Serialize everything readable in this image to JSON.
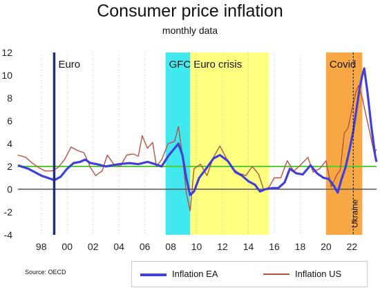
{
  "header": {
    "title": "Consumer price inflation",
    "subtitle": "monthly data"
  },
  "source": "Source: OECD",
  "colors": {
    "ea_line": "#4040d8",
    "us_line": "#b85040",
    "target_line": "#50d030",
    "zero_line": "#555555",
    "euro_marker": "#1f2f7a",
    "gfc_band": "#40e8f0",
    "euro_crisis_band": "#ffff80",
    "covid_band": "#f7a845"
  },
  "chart_data": {
    "type": "line",
    "title": "Consumer price inflation",
    "subtitle": "monthly data",
    "xlim": [
      1996.2,
      2023.9
    ],
    "ylim": [
      -4,
      12
    ],
    "y_ticks": [
      -4,
      -2,
      0,
      2,
      4,
      6,
      8,
      10,
      12
    ],
    "x_ticks": [
      {
        "label": "98",
        "x": 1998
      },
      {
        "label": "00",
        "x": 2000
      },
      {
        "label": "02",
        "x": 2002
      },
      {
        "label": "04",
        "x": 2004
      },
      {
        "label": "06",
        "x": 2006
      },
      {
        "label": "08",
        "x": 2008
      },
      {
        "label": "10",
        "x": 2010
      },
      {
        "label": "12",
        "x": 2012
      },
      {
        "label": "14",
        "x": 2014
      },
      {
        "label": "16",
        "x": 2016
      },
      {
        "label": "18",
        "x": 2018
      },
      {
        "label": "20",
        "x": 2020
      },
      {
        "label": "22",
        "x": 2022
      }
    ],
    "grid": "vertical dotted",
    "legend_position": "bottom",
    "bands": [
      {
        "label": "GFC",
        "x0": 2007.6,
        "x1": 2009.5
      },
      {
        "label": "Euro crisis",
        "x0": 2009.5,
        "x1": 2015.6
      },
      {
        "label": "Covid",
        "x0": 2020.0,
        "x1": 2022.8
      }
    ],
    "markers": [
      {
        "label": "Euro",
        "x": 1999.0
      },
      {
        "label": "Ukraine",
        "x": 2022.1
      }
    ],
    "reference_lines": [
      {
        "y": 2,
        "name": "target"
      },
      {
        "y": 0,
        "name": "zero"
      }
    ],
    "series": [
      {
        "name": "Inflation EA",
        "x": [
          1996.2,
          1997.0,
          1997.5,
          1998.0,
          1998.5,
          1999.0,
          1999.5,
          2000.0,
          2000.5,
          2001.0,
          2001.4,
          2001.8,
          2002.3,
          2003.0,
          2004.0,
          2004.8,
          2005.5,
          2006.2,
          2006.8,
          2007.3,
          2007.8,
          2008.3,
          2008.6,
          2008.9,
          2009.2,
          2009.5,
          2009.8,
          2010.2,
          2010.8,
          2011.3,
          2011.8,
          2012.4,
          2013.0,
          2013.5,
          2014.0,
          2014.5,
          2014.9,
          2015.3,
          2015.8,
          2016.3,
          2016.8,
          2017.2,
          2017.7,
          2018.2,
          2018.8,
          2019.3,
          2019.8,
          2020.2,
          2020.6,
          2020.9,
          2021.2,
          2021.5,
          2021.8,
          2022.1,
          2022.4,
          2022.6,
          2022.8,
          2022.95,
          2023.2,
          2023.5,
          2023.8,
          2023.9
        ],
        "values": [
          2.1,
          1.8,
          1.5,
          1.2,
          1.0,
          0.8,
          1.1,
          1.8,
          2.3,
          2.4,
          2.6,
          2.3,
          2.2,
          2.0,
          2.2,
          2.3,
          2.2,
          2.4,
          2.2,
          2.0,
          2.9,
          3.6,
          4.0,
          3.0,
          1.0,
          -0.5,
          -0.2,
          1.0,
          1.9,
          2.7,
          3.0,
          2.5,
          1.5,
          1.2,
          0.7,
          0.4,
          -0.2,
          0.0,
          0.1,
          0.1,
          0.6,
          1.8,
          1.4,
          1.3,
          2.1,
          1.4,
          1.0,
          0.9,
          0.3,
          -0.3,
          0.9,
          1.9,
          3.4,
          5.1,
          7.4,
          8.9,
          10.0,
          10.6,
          8.5,
          5.5,
          2.9,
          2.4
        ]
      },
      {
        "name": "Inflation US",
        "x": [
          1996.2,
          1996.8,
          1997.3,
          1997.8,
          1998.3,
          1998.8,
          1999.3,
          1999.8,
          2000.3,
          2000.8,
          2001.3,
          2001.8,
          2002.2,
          2002.7,
          2003.1,
          2003.6,
          2004.1,
          2004.6,
          2005.1,
          2005.5,
          2005.8,
          2006.2,
          2006.6,
          2006.9,
          2007.3,
          2007.8,
          2008.3,
          2008.6,
          2008.9,
          2009.2,
          2009.5,
          2009.8,
          2010.3,
          2010.8,
          2011.3,
          2011.8,
          2012.3,
          2012.8,
          2013.3,
          2013.8,
          2014.3,
          2014.8,
          2015.2,
          2015.6,
          2016.0,
          2016.5,
          2017.0,
          2017.5,
          2018.0,
          2018.6,
          2019.0,
          2019.5,
          2020.0,
          2020.4,
          2020.8,
          2021.1,
          2021.4,
          2021.7,
          2022.0,
          2022.3,
          2022.5,
          2022.8,
          2023.1,
          2023.4,
          2023.7,
          2023.9
        ],
        "values": [
          3.0,
          2.8,
          2.3,
          1.9,
          1.6,
          1.6,
          1.9,
          2.6,
          3.7,
          3.4,
          3.2,
          1.9,
          1.2,
          1.6,
          3.0,
          2.2,
          2.0,
          3.0,
          3.1,
          2.9,
          4.7,
          3.6,
          4.1,
          2.0,
          2.6,
          4.0,
          4.2,
          5.5,
          3.0,
          -0.3,
          -1.9,
          1.8,
          2.2,
          1.2,
          2.8,
          3.8,
          2.7,
          1.8,
          1.4,
          1.2,
          2.0,
          1.3,
          -0.1,
          0.2,
          1.0,
          1.0,
          2.5,
          1.6,
          2.1,
          2.8,
          1.5,
          1.8,
          2.5,
          0.2,
          1.2,
          1.7,
          4.9,
          5.4,
          7.0,
          8.5,
          9.1,
          8.0,
          6.4,
          4.9,
          3.2,
          3.5
        ]
      }
    ]
  }
}
